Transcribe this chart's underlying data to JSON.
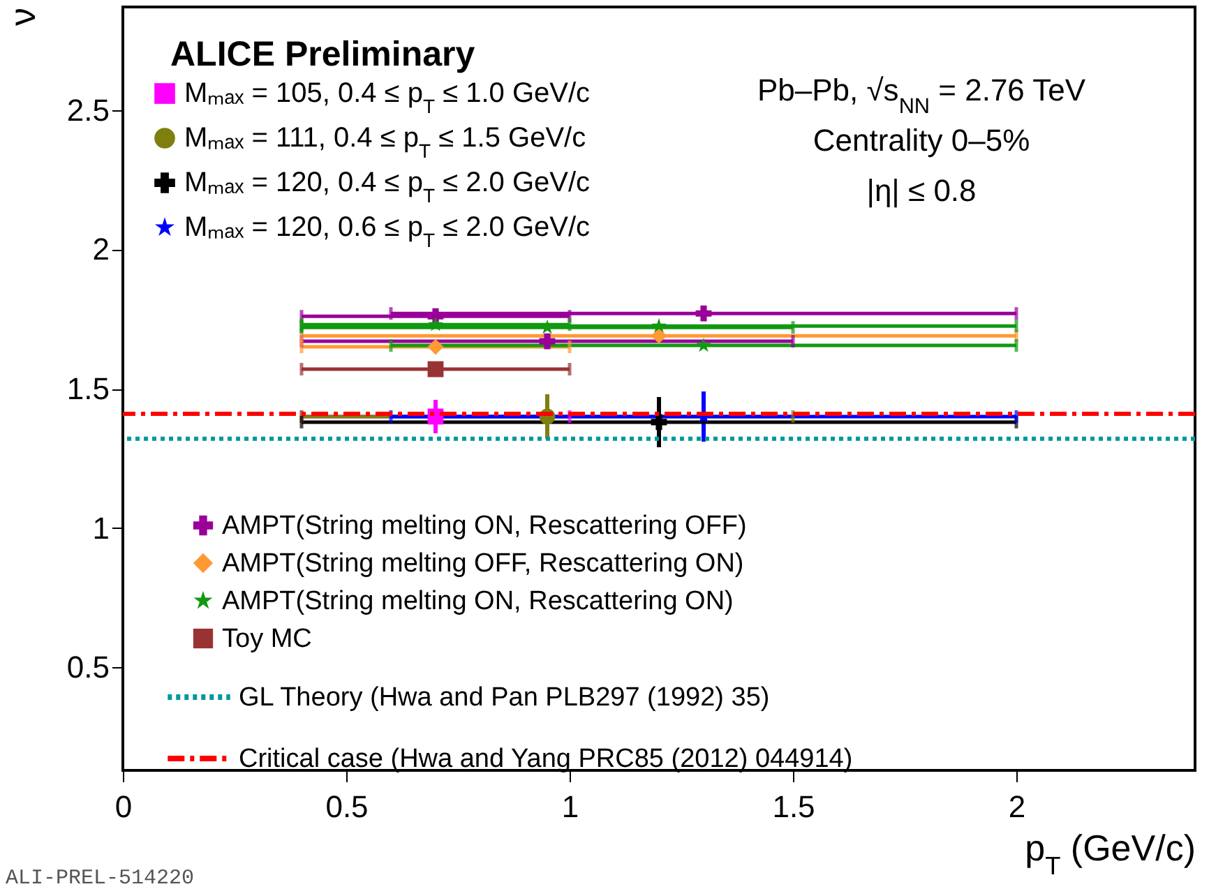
{
  "chart_data": {
    "type": "scatter",
    "title": "ALICE Preliminary",
    "xlabel": "p$_{T}$ (GeV/c)",
    "ylabel": "ν",
    "annotations": [
      "Pb–Pb, √s$_{NN}$ = 2.76 TeV",
      "Centrality 0–5%",
      "|η| ≤ 0.8",
      "ALI-PREL-514220"
    ],
    "xlim": [
      0,
      2.4
    ],
    "xticks": [
      0,
      0.5,
      1,
      1.5,
      2
    ],
    "ylim": [
      0.13,
      2.87
    ],
    "yticks": [
      0.5,
      1,
      1.5,
      2,
      2.5
    ],
    "grid": false,
    "legend": "left",
    "series": [
      {
        "name": "Mₘₐₓ = 105, 0.4 ≤ p$_{T}$ ≤ 1.0 GeV/c",
        "color": "#ff00ff",
        "marker": "square",
        "x": [
          0.7
        ],
        "values": [
          1.4
        ],
        "xerrors": [
          [
            0.4,
            1.0
          ]
        ],
        "errors": [
          0.06
        ]
      },
      {
        "name": "Mₘₐₓ = 111, 0.4 ≤ p$_{T}$ ≤ 1.5 GeV/c",
        "color": "#7f7f10",
        "marker": "circle",
        "x": [
          0.95
        ],
        "values": [
          1.4
        ],
        "xerrors": [
          [
            0.4,
            1.5
          ]
        ],
        "errors": [
          0.08
        ]
      },
      {
        "name": "Mₘₐₓ = 120, 0.4 ≤ p$_{T}$ ≤ 2.0 GeV/c",
        "color": "#000000",
        "marker": "cross",
        "x": [
          1.2
        ],
        "values": [
          1.38
        ],
        "xerrors": [
          [
            0.4,
            2.0
          ]
        ],
        "errors": [
          0.09
        ]
      },
      {
        "name": "Mₘₐₓ = 120, 0.6 ≤ p$_{T}$ ≤ 2.0 GeV/c",
        "color": "#0000ff",
        "marker": "star",
        "x": [
          1.3
        ],
        "values": [
          1.4
        ],
        "xerrors": [
          [
            0.6,
            2.0
          ]
        ],
        "errors": [
          0.09
        ]
      },
      {
        "name": "AMPT(String melting ON, Rescattering OFF)",
        "color": "#990099",
        "marker": "cross",
        "x": [
          0.7,
          0.95,
          1.3
        ],
        "values": [
          1.76,
          1.67,
          1.77
        ],
        "xerrors": [
          [
            0.4,
            1.0
          ],
          [
            0.4,
            1.5
          ],
          [
            0.6,
            2.0
          ]
        ]
      },
      {
        "name": "AMPT(String melting OFF, Rescattering ON)",
        "color": "#ff9933",
        "marker": "diamond",
        "x": [
          0.7,
          1.2
        ],
        "values": [
          1.65,
          1.69
        ],
        "xerrors": [
          [
            0.4,
            1.0
          ],
          [
            0.4,
            2.0
          ]
        ]
      },
      {
        "name": "AMPT(String melting ON, Rescattering ON)",
        "color": "#119911",
        "marker": "star",
        "x": [
          0.7,
          0.95,
          1.2,
          1.3
        ],
        "values": [
          1.73,
          1.72,
          1.725,
          1.655
        ],
        "xerrors": [
          [
            0.4,
            1.0
          ],
          [
            0.4,
            1.5
          ],
          [
            0.4,
            2.0
          ],
          [
            0.6,
            2.0
          ]
        ]
      },
      {
        "name": "Toy MC",
        "color": "#993333",
        "marker": "square",
        "x": [
          0.7
        ],
        "values": [
          1.57
        ],
        "xerrors": [
          [
            0.4,
            1.0
          ]
        ]
      }
    ],
    "ref_lines": [
      {
        "axis": "y",
        "value": 1.32,
        "label": "GL Theory (Hwa and Pan PLB297 (1992) 35)",
        "color": "#009999",
        "line_style": "dotted"
      },
      {
        "axis": "y",
        "value": 1.41,
        "label": "Critical case (Hwa and Yang PRC85 (2012) 044914)",
        "color": "#ff0000",
        "line_style": "dashed"
      }
    ]
  }
}
